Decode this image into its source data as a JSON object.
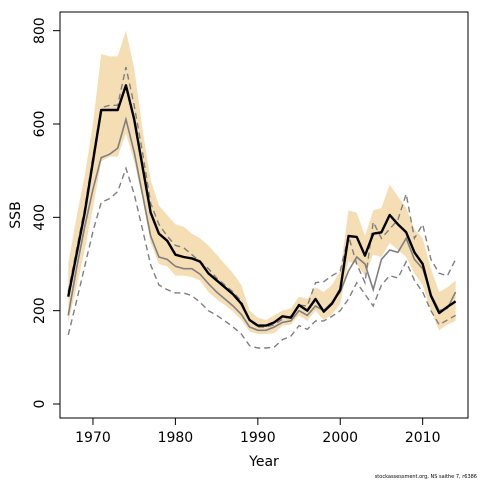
{
  "chart_data": {
    "type": "line",
    "title": "",
    "xlabel": "Year",
    "ylabel": "SSB",
    "xlim": [
      1966,
      2015.5
    ],
    "ylim": [
      -30,
      840
    ],
    "x_ticks": [
      1970,
      1980,
      1990,
      2000,
      2010
    ],
    "y_ticks": [
      0,
      200,
      400,
      600,
      800
    ],
    "grid": false,
    "legend": "none",
    "footer_text": "stockassessment.org, NS saithe 7, r6386",
    "colors": {
      "band": "#f5deb3",
      "main": "#000000",
      "alt": "#7f7f7f",
      "dashed": "#7f7f7f"
    },
    "x": [
      1967,
      1968,
      1969,
      1970,
      1971,
      1972,
      1973,
      1974,
      1975,
      1976,
      1977,
      1978,
      1979,
      1980,
      1981,
      1982,
      1983,
      1984,
      1985,
      1986,
      1987,
      1988,
      1989,
      1990,
      1991,
      1992,
      1993,
      1994,
      1995,
      1996,
      1997,
      1998,
      1999,
      2000,
      2001,
      2002,
      2003,
      2004,
      2005,
      2006,
      2007,
      2008,
      2009,
      2010,
      2011,
      2012,
      2013,
      2014
    ],
    "series": [
      {
        "role": "estimate",
        "style": "solid-bold",
        "values": [
          230,
          320,
          410,
          520,
          630,
          630,
          630,
          683,
          610,
          510,
          410,
          365,
          350,
          320,
          315,
          312,
          305,
          280,
          265,
          250,
          235,
          215,
          180,
          168,
          168,
          175,
          188,
          185,
          212,
          200,
          225,
          198,
          215,
          245,
          360,
          358,
          318,
          365,
          368,
          405,
          385,
          368,
          325,
          300,
          232,
          195,
          208,
          220
        ]
      },
      {
        "role": "band-upper",
        "values": [
          300,
          400,
          490,
          600,
          750,
          745,
          745,
          800,
          720,
          590,
          480,
          425,
          405,
          385,
          380,
          365,
          355,
          340,
          320,
          300,
          280,
          255,
          200,
          185,
          180,
          190,
          200,
          205,
          230,
          225,
          250,
          240,
          255,
          285,
          415,
          410,
          360,
          415,
          420,
          470,
          445,
          420,
          375,
          355,
          290,
          240,
          250,
          265
        ]
      },
      {
        "role": "band-lower",
        "values": [
          175,
          250,
          330,
          420,
          520,
          530,
          530,
          580,
          520,
          440,
          345,
          300,
          295,
          275,
          275,
          272,
          265,
          240,
          225,
          212,
          198,
          180,
          155,
          150,
          150,
          152,
          168,
          170,
          190,
          178,
          200,
          180,
          192,
          215,
          305,
          300,
          275,
          320,
          315,
          345,
          330,
          315,
          280,
          255,
          200,
          158,
          170,
          178
        ]
      },
      {
        "role": "alternative-run",
        "style": "solid-gray",
        "values": [
          190,
          290,
          380,
          460,
          528,
          535,
          548,
          610,
          540,
          450,
          360,
          315,
          310,
          295,
          290,
          290,
          278,
          258,
          240,
          225,
          210,
          192,
          165,
          158,
          158,
          165,
          175,
          178,
          200,
          190,
          210,
          200,
          218,
          240,
          285,
          315,
          300,
          245,
          310,
          330,
          325,
          355,
          310,
          290,
          235,
          200,
          205,
          240
        ]
      },
      {
        "role": "dashed-upper",
        "style": "dashed",
        "values": [
          240,
          330,
          420,
          530,
          635,
          640,
          640,
          722,
          640,
          540,
          430,
          385,
          360,
          340,
          335,
          320,
          305,
          290,
          270,
          255,
          240,
          220,
          180,
          165,
          165,
          170,
          182,
          188,
          212,
          210,
          260,
          262,
          275,
          285,
          360,
          300,
          260,
          390,
          355,
          375,
          395,
          450,
          355,
          385,
          310,
          280,
          275,
          310
        ]
      },
      {
        "role": "dashed-lower",
        "style": "dashed",
        "values": [
          148,
          220,
          295,
          370,
          432,
          440,
          455,
          505,
          450,
          375,
          298,
          255,
          245,
          238,
          238,
          232,
          218,
          200,
          190,
          178,
          165,
          150,
          125,
          120,
          120,
          122,
          138,
          145,
          168,
          160,
          178,
          178,
          188,
          200,
          225,
          260,
          235,
          210,
          255,
          275,
          270,
          305,
          265,
          240,
          200,
          170,
          180,
          190
        ]
      }
    ]
  }
}
